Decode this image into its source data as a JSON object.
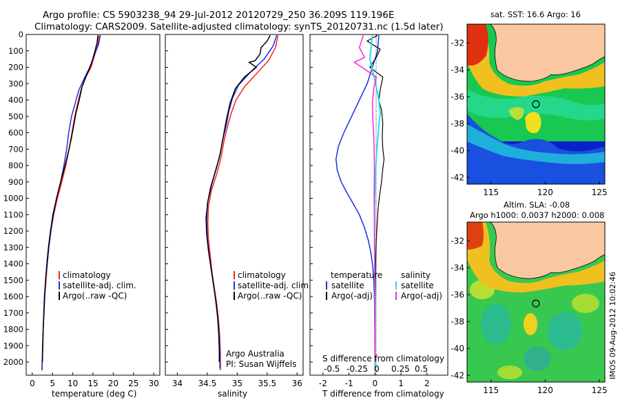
{
  "header": {
    "title_line1": "Argo profile: CS 5903238_94 29-Jul-2012 20120729_250 36.209S 119.196E",
    "title_line2": "Climatology: CARS2009. Satellite-adjusted climatology: synTS_20120731.nc (1.5d later)"
  },
  "depth_axis": {
    "range": [
      0,
      2080
    ],
    "ticks": [
      0,
      100,
      200,
      300,
      400,
      500,
      600,
      700,
      800,
      900,
      1000,
      1100,
      1200,
      1300,
      1400,
      1500,
      1600,
      1700,
      1800,
      1900,
      2000
    ]
  },
  "colors": {
    "climatology": "#ff2020",
    "satellite": "#1a2ee8",
    "argo": "#000000",
    "sat_salinity": "#22e0e8",
    "argo_salinity": "#ff20e0",
    "land": "#f9c8a0"
  },
  "chart_data": [
    {
      "id": "temperature",
      "type": "line",
      "xlabel": "temperature (deg C)",
      "xlim": [
        -1.5,
        31.5
      ],
      "xticks": [
        0,
        5,
        10,
        15,
        20,
        25,
        30
      ],
      "ylim": [
        0,
        2080
      ],
      "legend": [
        "climatology",
        "satellite-adj. clim.",
        "Argo(..raw -QC)"
      ],
      "series": [
        {
          "name": "climatology",
          "color": "#ff2020",
          "width": 1.5,
          "points": [
            [
              16.5,
              5
            ],
            [
              16.2,
              60
            ],
            [
              15.5,
              120
            ],
            [
              14.5,
              200
            ],
            [
              13.0,
              270
            ],
            [
              12.0,
              340
            ],
            [
              11.2,
              420
            ],
            [
              10.5,
              500
            ],
            [
              9.8,
              600
            ],
            [
              9.1,
              700
            ],
            [
              8.3,
              800
            ],
            [
              7.3,
              900
            ],
            [
              6.2,
              1000
            ],
            [
              5.3,
              1100
            ],
            [
              4.6,
              1200
            ],
            [
              4.1,
              1300
            ],
            [
              3.7,
              1400
            ],
            [
              3.4,
              1500
            ],
            [
              3.1,
              1600
            ],
            [
              2.9,
              1700
            ],
            [
              2.7,
              1800
            ],
            [
              2.6,
              1900
            ],
            [
              2.5,
              2000
            ],
            [
              2.45,
              2050
            ]
          ]
        },
        {
          "name": "satellite-adj. clim.",
          "color": "#1a2ee8",
          "width": 1.5,
          "points": [
            [
              16.8,
              5
            ],
            [
              16.4,
              60
            ],
            [
              15.4,
              120
            ],
            [
              14.2,
              200
            ],
            [
              12.8,
              270
            ],
            [
              11.5,
              340
            ],
            [
              10.6,
              420
            ],
            [
              9.7,
              500
            ],
            [
              9.0,
              600
            ],
            [
              8.5,
              700
            ],
            [
              7.8,
              800
            ],
            [
              7.0,
              900
            ],
            [
              6.0,
              1000
            ],
            [
              5.2,
              1100
            ],
            [
              4.6,
              1200
            ],
            [
              4.1,
              1300
            ],
            [
              3.7,
              1400
            ],
            [
              3.3,
              1500
            ],
            [
              3.1,
              1600
            ],
            [
              2.9,
              1700
            ],
            [
              2.7,
              1800
            ],
            [
              2.55,
              1900
            ],
            [
              2.45,
              2000
            ],
            [
              2.4,
              2050
            ]
          ]
        },
        {
          "name": "Argo(..raw -QC)",
          "color": "#000000",
          "width": 1.5,
          "points": [
            [
              16.2,
              5
            ],
            [
              16.0,
              50
            ],
            [
              15.5,
              100
            ],
            [
              14.6,
              180
            ],
            [
              13.4,
              250
            ],
            [
              12.3,
              320
            ],
            [
              11.6,
              400
            ],
            [
              10.8,
              480
            ],
            [
              10.2,
              560
            ],
            [
              9.6,
              640
            ],
            [
              8.9,
              720
            ],
            [
              8.0,
              810
            ],
            [
              7.0,
              900
            ],
            [
              6.0,
              1000
            ],
            [
              5.1,
              1100
            ],
            [
              4.5,
              1200
            ],
            [
              4.0,
              1300
            ],
            [
              3.6,
              1400
            ],
            [
              3.3,
              1500
            ],
            [
              3.0,
              1600
            ],
            [
              2.85,
              1700
            ],
            [
              2.7,
              1800
            ],
            [
              2.6,
              1900
            ],
            [
              2.5,
              2000
            ]
          ]
        }
      ]
    },
    {
      "id": "salinity",
      "type": "line",
      "xlabel": "salinity",
      "xlim": [
        33.8,
        36.1
      ],
      "xticks": [
        34,
        34.5,
        35,
        35.5,
        36
      ],
      "ylim": [
        0,
        2080
      ],
      "legend": [
        "climatology",
        "satellite-adj. clim.",
        "Argo(..raw -QC)"
      ],
      "annotation": [
        "Argo Australia",
        "PI: Susan Wijffels"
      ],
      "series": [
        {
          "name": "climatology",
          "color": "#ff2020",
          "width": 1.5,
          "points": [
            [
              35.68,
              5
            ],
            [
              35.64,
              80
            ],
            [
              35.52,
              160
            ],
            [
              35.32,
              240
            ],
            [
              35.12,
              320
            ],
            [
              34.98,
              400
            ],
            [
              34.9,
              480
            ],
            [
              34.84,
              560
            ],
            [
              34.78,
              650
            ],
            [
              34.73,
              750
            ],
            [
              34.66,
              850
            ],
            [
              34.57,
              950
            ],
            [
              34.52,
              1050
            ],
            [
              34.51,
              1150
            ],
            [
              34.52,
              1250
            ],
            [
              34.55,
              1350
            ],
            [
              34.58,
              1450
            ],
            [
              34.62,
              1550
            ],
            [
              34.66,
              1650
            ],
            [
              34.69,
              1750
            ],
            [
              34.71,
              1850
            ],
            [
              34.72,
              1950
            ],
            [
              34.72,
              2050
            ]
          ]
        },
        {
          "name": "satellite-adj. clim.",
          "color": "#1a2ee8",
          "width": 1.5,
          "points": [
            [
              35.66,
              5
            ],
            [
              35.6,
              70
            ],
            [
              35.45,
              150
            ],
            [
              35.22,
              230
            ],
            [
              35.02,
              310
            ],
            [
              34.92,
              390
            ],
            [
              34.86,
              470
            ],
            [
              34.82,
              550
            ],
            [
              34.76,
              640
            ],
            [
              34.71,
              740
            ],
            [
              34.63,
              840
            ],
            [
              34.55,
              940
            ],
            [
              34.5,
              1040
            ],
            [
              34.49,
              1140
            ],
            [
              34.5,
              1240
            ],
            [
              34.53,
              1340
            ],
            [
              34.57,
              1440
            ],
            [
              34.61,
              1540
            ],
            [
              34.65,
              1640
            ],
            [
              34.68,
              1740
            ],
            [
              34.7,
              1840
            ],
            [
              34.71,
              1940
            ],
            [
              34.71,
              2040
            ]
          ]
        },
        {
          "name": "Argo(..raw -QC)",
          "color": "#000000",
          "width": 1.5,
          "points": [
            [
              35.55,
              5
            ],
            [
              35.5,
              40
            ],
            [
              35.4,
              80
            ],
            [
              35.38,
              120
            ],
            [
              35.3,
              160
            ],
            [
              35.2,
              170
            ],
            [
              35.32,
              200
            ],
            [
              35.12,
              260
            ],
            [
              34.97,
              330
            ],
            [
              34.88,
              420
            ],
            [
              34.82,
              520
            ],
            [
              34.77,
              620
            ],
            [
              34.72,
              720
            ],
            [
              34.65,
              820
            ],
            [
              34.57,
              920
            ],
            [
              34.51,
              1020
            ],
            [
              34.48,
              1120
            ],
            [
              34.49,
              1220
            ],
            [
              34.52,
              1320
            ],
            [
              34.56,
              1420
            ],
            [
              34.6,
              1520
            ],
            [
              34.64,
              1620
            ],
            [
              34.67,
              1720
            ],
            [
              34.69,
              1820
            ],
            [
              34.7,
              1920
            ],
            [
              34.7,
              2000
            ]
          ]
        }
      ]
    },
    {
      "id": "difference",
      "type": "line",
      "xlabel": "T difference from climatology",
      "xlabel2": "S difference from climatology",
      "xlim": [
        -2.5,
        2.8
      ],
      "xticks": [
        -2,
        -1,
        0,
        1,
        2
      ],
      "xticks_s": [
        "-0.5",
        "-0.25",
        "0",
        "0.25",
        "0.5"
      ],
      "ylim": [
        0,
        2080
      ],
      "legend_left_title": "temperature",
      "legend_right_title": "salinity",
      "legend_left": [
        "satellite",
        "Argo(-adj)"
      ],
      "legend_right": [
        "satellite",
        "Argo(-adj)"
      ],
      "series": [
        {
          "name": "temperature satellite",
          "color": "#1a2ee8",
          "width": 1.5,
          "points": [
            [
              0.15,
              5
            ],
            [
              0.1,
              100
            ],
            [
              -0.1,
              200
            ],
            [
              -0.3,
              300
            ],
            [
              -0.6,
              400
            ],
            [
              -0.9,
              500
            ],
            [
              -1.2,
              600
            ],
            [
              -1.4,
              680
            ],
            [
              -1.5,
              760
            ],
            [
              -1.45,
              830
            ],
            [
              -1.3,
              900
            ],
            [
              -1.1,
              960
            ],
            [
              -0.85,
              1030
            ],
            [
              -0.6,
              1100
            ],
            [
              -0.4,
              1180
            ],
            [
              -0.25,
              1260
            ],
            [
              -0.15,
              1340
            ],
            [
              -0.08,
              1420
            ],
            [
              -0.04,
              1520
            ],
            [
              -0.02,
              1620
            ],
            [
              -0.01,
              1800
            ],
            [
              0,
              2050
            ]
          ]
        },
        {
          "name": "temperature Argo(-adj)",
          "color": "#000000",
          "width": 1.2,
          "points": [
            [
              0.1,
              5
            ],
            [
              -0.3,
              40
            ],
            [
              0.2,
              90
            ],
            [
              0.05,
              140
            ],
            [
              -0.2,
              200
            ],
            [
              0.3,
              260
            ],
            [
              0.2,
              340
            ],
            [
              0.15,
              400
            ],
            [
              0.25,
              460
            ],
            [
              0.3,
              540
            ],
            [
              0.28,
              620
            ],
            [
              0.3,
              700
            ],
            [
              0.35,
              760
            ],
            [
              0.3,
              820
            ],
            [
              0.25,
              900
            ],
            [
              0.18,
              980
            ],
            [
              0.12,
              1060
            ],
            [
              0.08,
              1160
            ],
            [
              0.05,
              1260
            ],
            [
              0.03,
              1360
            ],
            [
              0.02,
              1460
            ],
            [
              0.01,
              1600
            ],
            [
              0,
              1800
            ],
            [
              0,
              2000
            ]
          ]
        },
        {
          "name": "salinity satellite",
          "color": "#22e0e8",
          "width": 2,
          "points": [
            [
              -0.1,
              5
            ],
            [
              -0.2,
              150
            ],
            [
              -0.05,
              250
            ],
            [
              0.05,
              320
            ],
            [
              0.15,
              400
            ],
            [
              0.2,
              480
            ],
            [
              0.15,
              560
            ],
            [
              0.1,
              650
            ],
            [
              0.05,
              750
            ],
            [
              0.02,
              850
            ],
            [
              0,
              950
            ],
            [
              -0.02,
              1050
            ],
            [
              -0.02,
              1200
            ],
            [
              -0.01,
              1400
            ],
            [
              0,
              1700
            ],
            [
              0,
              2050
            ]
          ]
        },
        {
          "name": "salinity Argo(-adj)",
          "color": "#ff20e0",
          "width": 1.5,
          "points": [
            [
              -0.45,
              5
            ],
            [
              -0.6,
              80
            ],
            [
              -0.4,
              140
            ],
            [
              -0.8,
              170
            ],
            [
              -0.5,
              200
            ],
            [
              0.05,
              260
            ],
            [
              -0.05,
              330
            ],
            [
              -0.1,
              420
            ],
            [
              -0.08,
              520
            ],
            [
              -0.05,
              620
            ],
            [
              -0.03,
              720
            ],
            [
              -0.02,
              820
            ],
            [
              -0.03,
              920
            ],
            [
              -0.03,
              1020
            ],
            [
              -0.02,
              1120
            ],
            [
              -0.02,
              1300
            ],
            [
              -0.01,
              1500
            ],
            [
              0,
              1700
            ],
            [
              0,
              1900
            ],
            [
              0,
              2000
            ]
          ]
        }
      ]
    },
    {
      "id": "map_sst",
      "type": "heatmap",
      "title": "sat. SST: 16.6  Argo: 16",
      "xticks": [
        115,
        120,
        125
      ],
      "yticks": [
        -32,
        -34,
        -36,
        -38,
        -40,
        -42
      ],
      "marker": {
        "lon": 119.2,
        "lat": -36.2
      }
    },
    {
      "id": "map_sla",
      "type": "heatmap",
      "title_line1": "Altim. SLA: -0.08",
      "title_line2": "Argo h1000: 0.0037  h2000: 0.008",
      "xticks": [
        115,
        120,
        125
      ],
      "yticks": [
        -32,
        -34,
        -36,
        -38,
        -40,
        -42
      ],
      "marker": {
        "lon": 119.2,
        "lat": -36.2
      }
    }
  ],
  "footer": {
    "side_stamp": "IMOS 09-Aug-2012 10:02:46"
  }
}
